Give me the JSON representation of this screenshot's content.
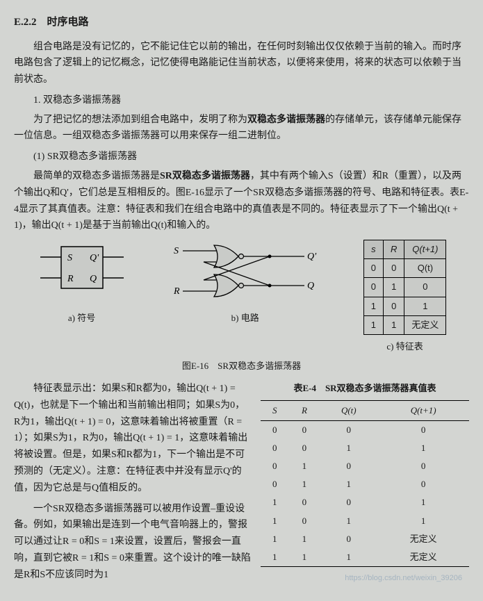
{
  "section": {
    "number": "E.2.2",
    "title": "时序电路"
  },
  "para1": "组合电路是没有记忆的，它不能记住它以前的输出，在任何时刻输出仅仅依赖于当前的输入。而时序电路包含了逻辑上的记忆概念，记忆使得电路能记住当前状态，以便将来使用，将来的状态可以依赖于当前状态。",
  "sub1": "1. 双稳态多谐振荡器",
  "para2a": "为了把记忆的想法添加到组合电路中，发明了称为",
  "para2b": "双稳态多谐振荡器",
  "para2c": "的存储单元，该存储单元能保存一位信息。一组双稳态多谐振荡器可以用来保存一组二进制位。",
  "sub2": "(1) SR双稳态多谐振荡器",
  "para3a": "最简单的双稳态多谐振荡器是",
  "para3b": "SR双稳态多谐振荡器",
  "para3c": "，其中有两个输入S（设置）和R（重置），以及两个输出Q和Q'，它们总是互相相反的。图E-16显示了一个SR双稳态多谐振荡器的符号、电路和特征表。表E-4显示了其真值表。注意：特征表和我们在组合电路中的真值表是不同的。特征表显示了下一个输出Q(t + 1)，输出Q(t + 1)是基于当前输出Q(t)和输入的。",
  "fig": {
    "caption_main": "图E-16　SR双稳态多谐振荡器",
    "a_label": "a) 符号",
    "b_label": "b) 电路",
    "c_label": "c) 特征表",
    "symbol": {
      "S": "S",
      "R": "R",
      "Q": "Q",
      "Qp": "Q'"
    },
    "circuit": {
      "S": "S",
      "R": "R",
      "Q": "Q",
      "Qp": "Q'"
    }
  },
  "char_table": {
    "headers": [
      "s",
      "R",
      "Q(t+1)"
    ],
    "rows": [
      [
        "0",
        "0",
        "Q(t)"
      ],
      [
        "0",
        "1",
        "0"
      ],
      [
        "1",
        "0",
        "1"
      ],
      [
        "1",
        "1",
        "无定义"
      ]
    ]
  },
  "truth": {
    "title": "表E-4　SR双稳态多谐振荡器真值表",
    "headers": [
      "S",
      "R",
      "Q(t)",
      "Q(t+1)"
    ],
    "rows": [
      [
        "0",
        "0",
        "0",
        "0"
      ],
      [
        "0",
        "0",
        "1",
        "1"
      ],
      [
        "0",
        "1",
        "0",
        "0"
      ],
      [
        "0",
        "1",
        "1",
        "0"
      ],
      [
        "1",
        "0",
        "0",
        "1"
      ],
      [
        "1",
        "0",
        "1",
        "1"
      ],
      [
        "1",
        "1",
        "0",
        "无定义"
      ],
      [
        "1",
        "1",
        "1",
        "无定义"
      ]
    ]
  },
  "para4": "特征表显示出：如果S和R都为0，输出Q(t + 1) = Q(t)，也就是下一个输出和当前输出相同；如果S为0，R为1，输出Q(t + 1) = 0，这意味着输出将被重置（R = 1）；如果S为1，R为0，输出Q(t + 1) = 1，这意味着输出将被设置。但是，如果S和R都为1，下一个输出是不可预测的（无定义）。注意：在特征表中并没有显示Q'的值，因为它总是与Q值相反的。",
  "para5": "一个SR双稳态多谐振荡器可以被用作设置–重设设备。例如，如果输出是连到一个电气音响器上的，警报可以通过让R = 0和S = 1来设置，设置后，警报会一直响，直到它被R = 1和S = 0来重置。这个设计的唯一缺陷是R和S不应该同时为1",
  "watermark": "https://blog.csdn.net/weixin_39206",
  "colors": {
    "bg": "#d3d5d2",
    "text": "#1a1a1a",
    "line": "#000000"
  }
}
